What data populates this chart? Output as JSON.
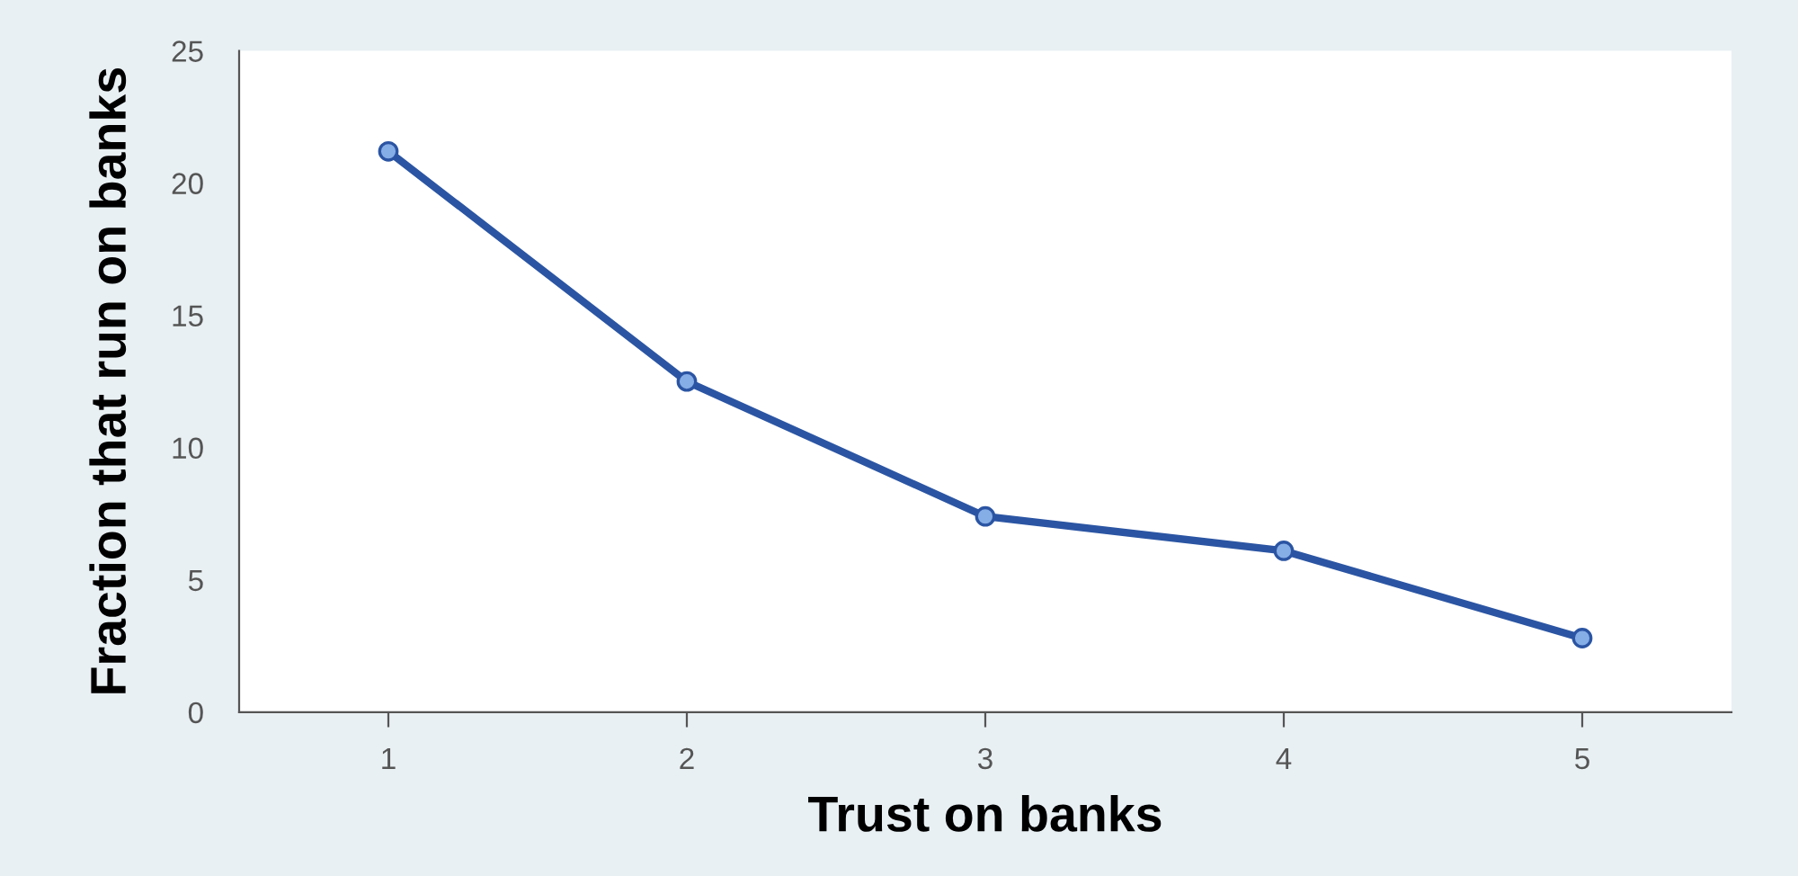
{
  "chart_data": {
    "type": "line",
    "xlabel": "Trust on banks",
    "ylabel": "Fraction that run on banks",
    "x": [
      1,
      2,
      3,
      4,
      5
    ],
    "series": [
      {
        "color": "#2b55a3",
        "values": [
          21.2,
          12.5,
          7.4,
          6.1,
          2.8
        ]
      }
    ],
    "xlim": [
      0.5,
      5.5
    ],
    "xticks": [
      1,
      2,
      3,
      4,
      5
    ],
    "ylim": [
      0,
      25
    ],
    "yticks": [
      0,
      5,
      10,
      15,
      20,
      25
    ],
    "marker": "circle",
    "line_style": "solid",
    "grid": false,
    "legend": false
  }
}
